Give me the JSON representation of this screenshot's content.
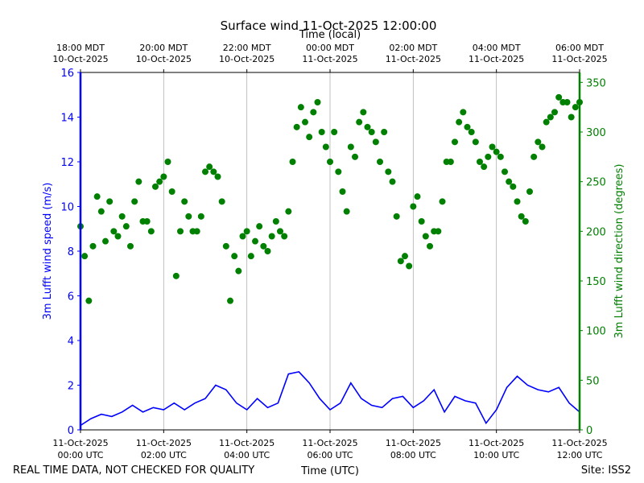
{
  "chart_data": {
    "type": "line",
    "title": "Surface wind 11-Oct-2025 12:00:00",
    "xlabel": "Time (UTC)",
    "top_xlabel": "Time (local)",
    "ylabel_left": "3m Lufft wind speed (m/s)",
    "ylabel_right": "3m Lufft wind direction (degrees)",
    "footer_left": "REAL TIME DATA, NOT CHECKED FOR QUALITY",
    "footer_right": "Site: ISS2",
    "x_range_hours_utc": [
      0,
      12
    ],
    "ylim_left": [
      0,
      16
    ],
    "ylim_right": [
      0,
      360
    ],
    "grid": "vertical at x ticks",
    "colors": {
      "speed": "#0000ff",
      "direction": "#008000",
      "grid": "#b0b0b0"
    },
    "bottom_ticks": [
      {
        "h": 0,
        "line1": "11-Oct-2025",
        "line2": "00:00 UTC"
      },
      {
        "h": 2,
        "line1": "11-Oct-2025",
        "line2": "02:00 UTC"
      },
      {
        "h": 4,
        "line1": "11-Oct-2025",
        "line2": "04:00 UTC"
      },
      {
        "h": 6,
        "line1": "11-Oct-2025",
        "line2": "06:00 UTC"
      },
      {
        "h": 8,
        "line1": "11-Oct-2025",
        "line2": "08:00 UTC"
      },
      {
        "h": 10,
        "line1": "11-Oct-2025",
        "line2": "10:00 UTC"
      },
      {
        "h": 12,
        "line1": "11-Oct-2025",
        "line2": "12:00 UTC"
      }
    ],
    "top_ticks": [
      {
        "h": 0,
        "line1": "18:00 MDT",
        "line2": "10-Oct-2025"
      },
      {
        "h": 2,
        "line1": "20:00 MDT",
        "line2": "10-Oct-2025"
      },
      {
        "h": 4,
        "line1": "22:00 MDT",
        "line2": "10-Oct-2025"
      },
      {
        "h": 6,
        "line1": "00:00 MDT",
        "line2": "11-Oct-2025"
      },
      {
        "h": 8,
        "line1": "02:00 MDT",
        "line2": "11-Oct-2025"
      },
      {
        "h": 10,
        "line1": "04:00 MDT",
        "line2": "11-Oct-2025"
      },
      {
        "h": 12,
        "line1": "06:00 MDT",
        "line2": "11-Oct-2025"
      }
    ],
    "left_ticks": [
      "0",
      "2",
      "4",
      "6",
      "8",
      "10",
      "12",
      "14",
      "16"
    ],
    "right_ticks": [
      "0",
      "50",
      "100",
      "150",
      "200",
      "250",
      "300",
      "350"
    ],
    "series": [
      {
        "name": "3m Lufft wind speed (m/s)",
        "axis": "left",
        "style": "line",
        "x": [
          0,
          0.25,
          0.5,
          0.75,
          1,
          1.25,
          1.5,
          1.75,
          2,
          2.25,
          2.5,
          2.75,
          3,
          3.25,
          3.5,
          3.75,
          4,
          4.25,
          4.5,
          4.75,
          5,
          5.25,
          5.5,
          5.75,
          6,
          6.25,
          6.5,
          6.75,
          7,
          7.25,
          7.5,
          7.75,
          8,
          8.25,
          8.5,
          8.75,
          9,
          9.25,
          9.5,
          9.75,
          10,
          10.25,
          10.5,
          10.75,
          11,
          11.25,
          11.5,
          11.75,
          12
        ],
        "y": [
          0.2,
          0.5,
          0.7,
          0.6,
          0.8,
          1.1,
          0.8,
          1.0,
          0.9,
          1.2,
          0.9,
          1.2,
          1.4,
          2.0,
          1.8,
          1.2,
          0.9,
          1.4,
          1.0,
          1.2,
          2.5,
          2.6,
          2.1,
          1.4,
          0.9,
          1.2,
          2.1,
          1.4,
          1.1,
          1.0,
          1.4,
          1.5,
          1.0,
          1.3,
          1.8,
          0.8,
          1.5,
          1.3,
          1.2,
          0.3,
          0.9,
          1.9,
          2.4,
          2.0,
          1.8,
          1.7,
          1.9,
          1.2,
          0.8
        ]
      },
      {
        "name": "3m Lufft wind direction (degrees)",
        "axis": "right",
        "style": "markers",
        "x": [
          0,
          0.1,
          0.2,
          0.3,
          0.4,
          0.5,
          0.6,
          0.7,
          0.8,
          0.9,
          1,
          1.1,
          1.2,
          1.3,
          1.4,
          1.5,
          1.6,
          1.7,
          1.8,
          1.9,
          2,
          2.1,
          2.2,
          2.3,
          2.4,
          2.5,
          2.6,
          2.7,
          2.8,
          2.9,
          3,
          3.1,
          3.2,
          3.3,
          3.4,
          3.5,
          3.6,
          3.7,
          3.8,
          3.9,
          4,
          4.1,
          4.2,
          4.3,
          4.4,
          4.5,
          4.6,
          4.7,
          4.8,
          4.9,
          5,
          5.1,
          5.2,
          5.3,
          5.4,
          5.5,
          5.6,
          5.7,
          5.8,
          5.9,
          6,
          6.1,
          6.2,
          6.3,
          6.4,
          6.5,
          6.6,
          6.7,
          6.8,
          6.9,
          7,
          7.1,
          7.2,
          7.3,
          7.4,
          7.5,
          7.6,
          7.7,
          7.8,
          7.9,
          8,
          8.1,
          8.2,
          8.3,
          8.4,
          8.5,
          8.6,
          8.7,
          8.8,
          8.9,
          9,
          9.1,
          9.2,
          9.3,
          9.4,
          9.5,
          9.6,
          9.7,
          9.8,
          9.9,
          10,
          10.1,
          10.2,
          10.3,
          10.4,
          10.5,
          10.6,
          10.7,
          10.8,
          10.9,
          11,
          11.1,
          11.2,
          11.3,
          11.4,
          11.5,
          11.6,
          11.7,
          11.8,
          11.9,
          12
        ],
        "y": [
          205,
          175,
          130,
          185,
          235,
          220,
          190,
          230,
          200,
          195,
          215,
          205,
          185,
          230,
          250,
          210,
          210,
          200,
          245,
          250,
          255,
          270,
          240,
          155,
          200,
          230,
          215,
          200,
          200,
          215,
          260,
          265,
          260,
          255,
          230,
          185,
          130,
          175,
          160,
          195,
          200,
          175,
          190,
          205,
          185,
          180,
          195,
          210,
          200,
          195,
          220,
          270,
          305,
          325,
          310,
          295,
          320,
          330,
          300,
          285,
          270,
          300,
          260,
          240,
          220,
          285,
          275,
          310,
          320,
          305,
          300,
          290,
          270,
          300,
          260,
          250,
          215,
          170,
          175,
          165,
          225,
          235,
          210,
          195,
          185,
          200,
          200,
          230,
          270,
          270,
          290,
          310,
          320,
          305,
          300,
          290,
          270,
          265,
          275,
          285,
          280,
          275,
          260,
          250,
          245,
          230,
          215,
          210,
          240,
          275,
          290,
          285,
          310,
          315,
          320,
          335,
          330,
          330,
          315,
          325,
          330
        ]
      }
    ]
  }
}
